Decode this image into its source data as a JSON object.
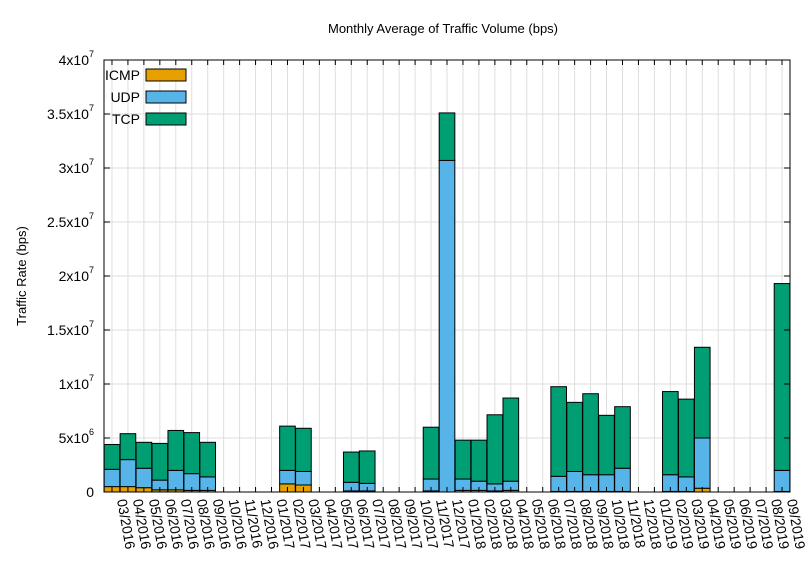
{
  "chart_data": {
    "type": "bar",
    "stacked": true,
    "title": "Monthly Average of Traffic Volume (bps)",
    "xlabel": "",
    "ylabel": "Traffic Rate (bps)",
    "ylim": [
      0,
      40000000
    ],
    "yticks": [
      {
        "value": 0,
        "mant": "0",
        "exp": ""
      },
      {
        "value": 5000000,
        "mant": "5x10",
        "exp": "6"
      },
      {
        "value": 10000000,
        "mant": "1x10",
        "exp": "7"
      },
      {
        "value": 15000000,
        "mant": "1.5x10",
        "exp": "7"
      },
      {
        "value": 20000000,
        "mant": "2x10",
        "exp": "7"
      },
      {
        "value": 25000000,
        "mant": "2.5x10",
        "exp": "7"
      },
      {
        "value": 30000000,
        "mant": "3x10",
        "exp": "7"
      },
      {
        "value": 35000000,
        "mant": "3.5x10",
        "exp": "7"
      },
      {
        "value": 40000000,
        "mant": "4x10",
        "exp": "7"
      }
    ],
    "grid": true,
    "legend_position": "top-left",
    "categories": [
      "03/2016",
      "04/2016",
      "05/2016",
      "06/2016",
      "07/2016",
      "08/2016",
      "09/2016",
      "10/2016",
      "11/2016",
      "12/2016",
      "01/2017",
      "02/2017",
      "03/2017",
      "04/2017",
      "05/2017",
      "06/2017",
      "07/2017",
      "08/2017",
      "09/2017",
      "10/2017",
      "11/2017",
      "12/2017",
      "01/2018",
      "02/2018",
      "03/2018",
      "04/2018",
      "05/2018",
      "06/2018",
      "07/2018",
      "08/2018",
      "09/2018",
      "10/2018",
      "11/2018",
      "12/2018",
      "01/2019",
      "02/2019",
      "03/2019",
      "04/2019",
      "05/2019",
      "06/2019",
      "07/2019",
      "08/2019",
      "09/2019"
    ],
    "series": [
      {
        "name": "ICMP",
        "color": "#e6a000",
        "values": [
          500000,
          500000,
          400000,
          200000,
          200000,
          150000,
          150000,
          0,
          0,
          0,
          0,
          750000,
          650000,
          0,
          0,
          100000,
          100000,
          0,
          0,
          0,
          100000,
          0,
          150000,
          150000,
          100000,
          150000,
          0,
          0,
          50000,
          50000,
          50000,
          50000,
          50000,
          0,
          0,
          50000,
          50000,
          350000,
          0,
          0,
          0,
          0,
          50000
        ]
      },
      {
        "name": "UDP",
        "color": "#56b4e9",
        "values": [
          1600000,
          2500000,
          1800000,
          900000,
          1800000,
          1550000,
          1250000,
          0,
          0,
          0,
          0,
          1250000,
          1250000,
          0,
          0,
          800000,
          700000,
          0,
          0,
          0,
          1100000,
          30700000,
          1050000,
          850000,
          650000,
          850000,
          0,
          0,
          1400000,
          1850000,
          1550000,
          1550000,
          2150000,
          0,
          0,
          1550000,
          1350000,
          4650000,
          0,
          0,
          0,
          0,
          1950000
        ]
      },
      {
        "name": "TCP",
        "color": "#009e73",
        "values": [
          2300000,
          2400000,
          2400000,
          3400000,
          3700000,
          3800000,
          3200000,
          0,
          0,
          0,
          0,
          4100000,
          4000000,
          0,
          0,
          2800000,
          3000000,
          0,
          0,
          0,
          4800000,
          4400000,
          3600000,
          3800000,
          6400000,
          7700000,
          0,
          0,
          8300000,
          6400000,
          7500000,
          5500000,
          5700000,
          0,
          0,
          7700000,
          7200000,
          8400000,
          0,
          0,
          0,
          0,
          17300000
        ]
      }
    ]
  }
}
